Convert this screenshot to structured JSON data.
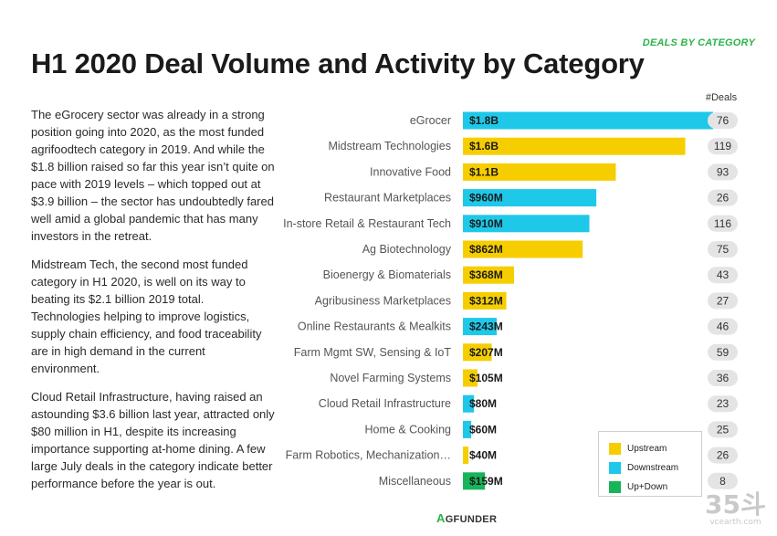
{
  "header": {
    "kicker": "DEALS BY CATEGORY",
    "title": "H1 2020 Deal Volume and Activity by Category"
  },
  "body": {
    "paragraphs": [
      "The eGrocery sector was already in a strong position going into 2020, as the most funded agrifoodtech category in 2019. And while the $1.8 billion raised so far this year isn’t quite on pace with 2019 levels – which topped out at $3.9 billion – the sector has undoubtedly fared well amid a global pandemic that has many investors in the retreat.",
      "Midstream Tech, the second most funded category in H1 2020, is well on its way to beating its $2.1 billion 2019 total. Technologies helping to improve logistics, supply chain efficiency, and food traceability are in high demand in the current environment.",
      "Cloud Retail Infrastructure, having raised an astounding $3.6 billion last year, attracted only $80 million in H1, despite its increasing importance supporting at-home dining. A few large July deals in the category indicate better performance before the year is out."
    ]
  },
  "colors": {
    "Upstream": "#f6ce00",
    "Downstream": "#1ec8e8",
    "Up+Down": "#17b45a",
    "deal_pill": "#e4e4e4",
    "label_text": "#555555"
  },
  "chart_data": {
    "type": "bar",
    "orientation": "horizontal",
    "title": "H1 2020 Deal Volume and Activity by Category",
    "deals_header": "#Deals",
    "xlim": [
      0,
      1800
    ],
    "value_unit": "$M",
    "categories": [
      "eGrocer",
      "Midstream Technologies",
      "Innovative Food",
      "Restaurant Marketplaces",
      "In-store Retail & Restaurant Tech",
      "Ag Biotechnology",
      "Bioenergy & Biomaterials",
      "Agribusiness Marketplaces",
      "Online Restaurants & Mealkits",
      "Farm Mgmt SW, Sensing & IoT",
      "Novel Farming Systems",
      "Cloud Retail Infrastructure",
      "Home & Cooking",
      "Farm Robotics, Mechanization…",
      "Miscellaneous"
    ],
    "values": [
      1800,
      1600,
      1100,
      960,
      910,
      862,
      368,
      312,
      243,
      207,
      105,
      80,
      60,
      40,
      159
    ],
    "value_labels": [
      "$1.8B",
      "$1.6B",
      "$1.1B",
      "$960M",
      "$910M",
      "$862M",
      "$368M",
      "$312M",
      "$243M",
      "$207M",
      "$105M",
      "$80M",
      "$60M",
      "$40M",
      "$159M"
    ],
    "segments": [
      "Downstream",
      "Upstream",
      "Upstream",
      "Downstream",
      "Downstream",
      "Upstream",
      "Upstream",
      "Upstream",
      "Downstream",
      "Upstream",
      "Upstream",
      "Downstream",
      "Downstream",
      "Upstream",
      "Up+Down"
    ],
    "deals": [
      "76",
      "119",
      "93",
      "26",
      "116",
      "75",
      "43",
      "27",
      "46",
      "59",
      "36",
      "23",
      "25",
      "26",
      "8"
    ],
    "legend": [
      "Upstream",
      "Downstream",
      "Up+Down"
    ],
    "legend_position": "bottom-right"
  },
  "footer": {
    "brand_prefix": "A",
    "brand_rest": "GFUNDER"
  },
  "watermark": {
    "big": "35斗",
    "small": "vcearth.com"
  }
}
